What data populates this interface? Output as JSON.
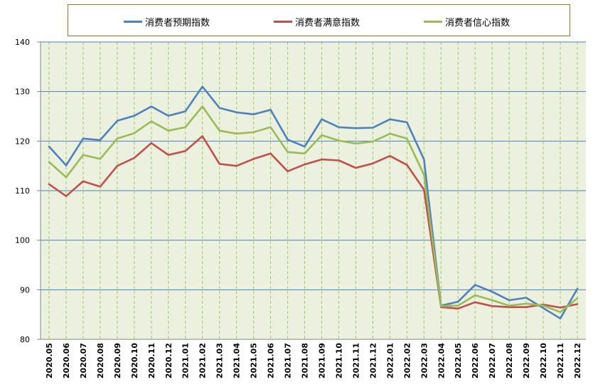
{
  "chart_data": {
    "type": "line",
    "title": "",
    "xlabel": "",
    "ylabel": "",
    "ylim": [
      80,
      140
    ],
    "yticks": [
      80,
      90,
      100,
      110,
      120,
      130,
      140
    ],
    "grid": "horizontal solid lines and vertical dashed lines",
    "legend_position": "top",
    "categories": [
      "2020.05",
      "2020.06",
      "2020.07",
      "2020.08",
      "2020.09",
      "2020.10",
      "2020.11",
      "2020.12",
      "2021.01",
      "2021.02",
      "2021.03",
      "2021.04",
      "2021.05",
      "2021.06",
      "2021.07",
      "2021.08",
      "2021.09",
      "2021.10",
      "2021.11",
      "2021.12",
      "2022.01",
      "2022.02",
      "2022.03",
      "2022.04",
      "2022.05",
      "2022.06",
      "2022.07",
      "2022.08",
      "2022.09",
      "2022.10",
      "2022.11",
      "2022.12"
    ],
    "series": [
      {
        "name": "消费者预期指数",
        "color": "#4f81bd",
        "values": [
          118.9,
          115.1,
          120.5,
          120.2,
          124.1,
          125.1,
          127.0,
          125.1,
          126.0,
          131.0,
          126.7,
          125.8,
          125.4,
          126.3,
          120.3,
          118.9,
          124.4,
          122.8,
          122.6,
          122.7,
          124.4,
          123.8,
          116.3,
          86.8,
          87.6,
          91.0,
          89.6,
          87.9,
          88.4,
          86.3,
          84.2,
          90.2
        ]
      },
      {
        "name": "消费者满意指数",
        "color": "#c0504d",
        "values": [
          111.3,
          108.9,
          111.9,
          110.8,
          115.0,
          116.6,
          119.6,
          117.2,
          118.0,
          121.0,
          115.4,
          115.0,
          116.4,
          117.5,
          113.9,
          115.3,
          116.3,
          116.1,
          114.6,
          115.5,
          117.0,
          115.2,
          110.2,
          86.5,
          86.2,
          87.5,
          86.7,
          86.5,
          86.5,
          87.0,
          86.4,
          87.1
        ]
      },
      {
        "name": "消费者信心指数",
        "color": "#9bbb59",
        "values": [
          115.8,
          112.7,
          117.2,
          116.4,
          120.5,
          121.6,
          124.0,
          122.1,
          122.8,
          127.0,
          122.1,
          121.5,
          121.8,
          122.8,
          117.8,
          117.5,
          121.2,
          120.1,
          119.5,
          119.9,
          121.5,
          120.5,
          113.2,
          86.7,
          86.8,
          88.9,
          87.9,
          86.8,
          87.2,
          86.8,
          85.5,
          88.3
        ]
      }
    ]
  }
}
